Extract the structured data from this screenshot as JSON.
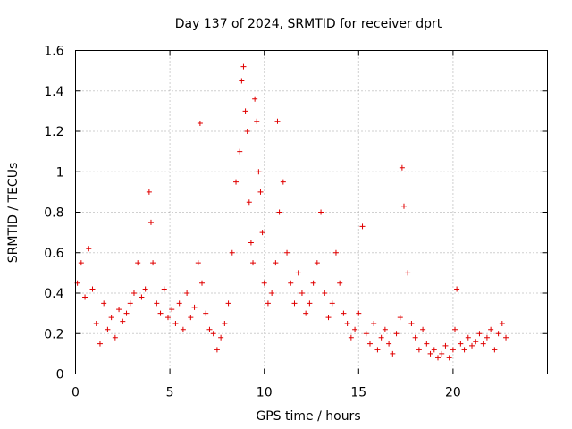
{
  "chart_data": {
    "type": "scatter",
    "title": "Day 137 of 2024, SRMTID for receiver dprt",
    "xlabel": "GPS time / hours",
    "ylabel": "SRMTID / TECUs",
    "xlim": [
      0,
      25
    ],
    "ylim": [
      0,
      1.6
    ],
    "xticks": [
      0,
      5,
      10,
      15,
      20
    ],
    "yticks": [
      0,
      0.2,
      0.4,
      0.6,
      0.8,
      1,
      1.2,
      1.4,
      1.6
    ],
    "xtick_labels": [
      "0",
      "5",
      "10",
      "15",
      "20"
    ],
    "ytick_labels": [
      "0",
      "0.2",
      "0.4",
      "0.6",
      "0.8",
      "1",
      "1.2",
      "1.4",
      "1.6"
    ],
    "grid": true,
    "marker": "+",
    "color": "#e00000",
    "series": [
      {
        "name": "SRMTID",
        "x": [
          0.1,
          0.3,
          0.5,
          0.7,
          0.9,
          1.1,
          1.3,
          1.5,
          1.7,
          1.9,
          2.1,
          2.3,
          2.5,
          2.7,
          2.9,
          3.1,
          3.3,
          3.5,
          3.7,
          3.9,
          4.0,
          4.1,
          4.3,
          4.5,
          4.7,
          4.9,
          5.1,
          5.3,
          5.5,
          5.7,
          5.9,
          6.1,
          6.3,
          6.5,
          6.6,
          6.7,
          6.9,
          7.1,
          7.3,
          7.5,
          7.7,
          7.9,
          8.1,
          8.3,
          8.5,
          8.7,
          8.8,
          8.9,
          9.0,
          9.1,
          9.2,
          9.3,
          9.4,
          9.5,
          9.6,
          9.7,
          9.8,
          9.9,
          10.0,
          10.2,
          10.4,
          10.6,
          10.7,
          10.8,
          11.0,
          11.2,
          11.4,
          11.6,
          11.8,
          12.0,
          12.2,
          12.4,
          12.6,
          12.8,
          13.0,
          13.2,
          13.4,
          13.6,
          13.8,
          14.0,
          14.2,
          14.4,
          14.6,
          14.8,
          15.0,
          15.2,
          15.4,
          15.6,
          15.8,
          16.0,
          16.2,
          16.4,
          16.6,
          16.8,
          17.0,
          17.2,
          17.3,
          17.4,
          17.6,
          17.8,
          18.0,
          18.2,
          18.4,
          18.6,
          18.8,
          19.0,
          19.2,
          19.4,
          19.6,
          19.8,
          20.0,
          20.1,
          20.2,
          20.4,
          20.6,
          20.8,
          21.0,
          21.2,
          21.4,
          21.6,
          21.8,
          22.0,
          22.2,
          22.4,
          22.6,
          22.8
        ],
        "y": [
          0.45,
          0.55,
          0.38,
          0.62,
          0.42,
          0.25,
          0.15,
          0.35,
          0.22,
          0.28,
          0.18,
          0.32,
          0.26,
          0.3,
          0.35,
          0.4,
          0.55,
          0.38,
          0.42,
          0.9,
          0.75,
          0.55,
          0.35,
          0.3,
          0.42,
          0.28,
          0.32,
          0.25,
          0.35,
          0.22,
          0.4,
          0.28,
          0.33,
          0.55,
          1.24,
          0.45,
          0.3,
          0.22,
          0.2,
          0.12,
          0.18,
          0.25,
          0.35,
          0.6,
          0.95,
          1.1,
          1.45,
          1.52,
          1.3,
          1.2,
          0.85,
          0.65,
          0.55,
          1.36,
          1.25,
          1.0,
          0.9,
          0.7,
          0.45,
          0.35,
          0.4,
          0.55,
          1.25,
          0.8,
          0.95,
          0.6,
          0.45,
          0.35,
          0.5,
          0.4,
          0.3,
          0.35,
          0.45,
          0.55,
          0.8,
          0.4,
          0.28,
          0.35,
          0.6,
          0.45,
          0.3,
          0.25,
          0.18,
          0.22,
          0.3,
          0.73,
          0.2,
          0.15,
          0.25,
          0.12,
          0.18,
          0.22,
          0.15,
          0.1,
          0.2,
          0.28,
          1.02,
          0.83,
          0.5,
          0.25,
          0.18,
          0.12,
          0.22,
          0.15,
          0.1,
          0.12,
          0.08,
          0.1,
          0.14,
          0.08,
          0.12,
          0.22,
          0.42,
          0.15,
          0.12,
          0.18,
          0.14,
          0.16,
          0.2,
          0.15,
          0.18,
          0.22,
          0.12,
          0.2,
          0.25,
          0.18
        ]
      }
    ]
  }
}
